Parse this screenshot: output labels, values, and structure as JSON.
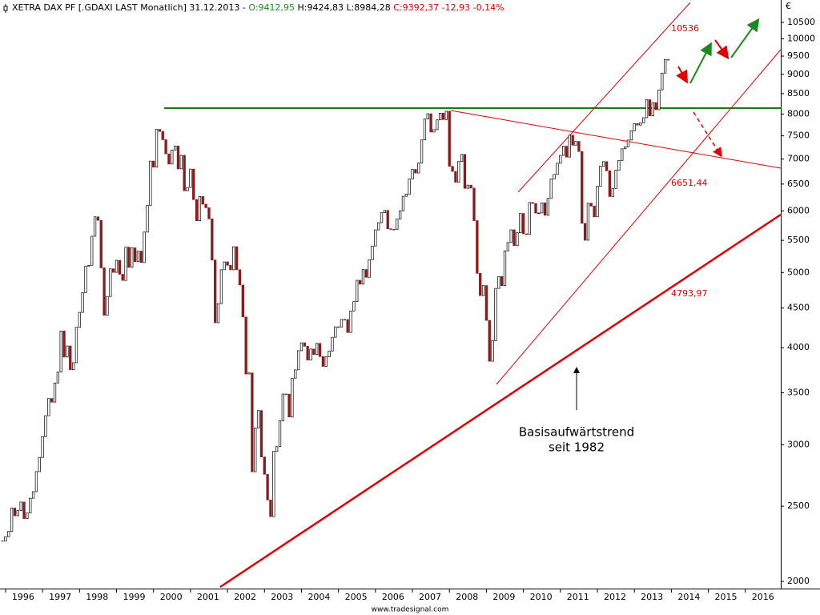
{
  "chart_data": {
    "type": "candlestick",
    "header": [
      "XETRA DAX PF [.GDAXI LAST Monatlich] 31.12.2013 -",
      "O:9412,95",
      "H:9424,83 L:8984,28",
      "C:9392,37 -12,93 -0,14%"
    ],
    "currency": "€",
    "log_scale": true,
    "color_up": "#ffffff",
    "color_down": "#8b1a1a",
    "values": [
      2254,
      2284,
      2320,
      2486,
      2430,
      2468,
      2531,
      2410,
      2450,
      2560,
      2610,
      2770,
      2889,
      3073,
      3270,
      3441,
      3404,
      3603,
      3722,
      4203,
      3891,
      4021,
      3748,
      3826,
      4250,
      4442,
      4710,
      5097,
      5108,
      5568,
      5898,
      5837,
      5070,
      4404,
      4657,
      5055,
      5002,
      5184,
      4974,
      4884,
      5390,
      5077,
      5379,
      5162,
      5326,
      5150,
      5637,
      6102,
      6958,
      6835,
      7644,
      7599,
      7414,
      7109,
      6898,
      7191,
      7277,
      6799,
      7078,
      6372,
      6434,
      6795,
      6208,
      5830,
      6265,
      6123,
      6058,
      5862,
      5188,
      4308,
      4559,
      5041,
      5160,
      5108,
      5040,
      5397,
      5041,
      4818,
      4382,
      3700,
      3712,
      2769,
      3153,
      3320,
      2893,
      2748,
      2547,
      2424,
      2942,
      2983,
      3221,
      3487,
      3485,
      3257,
      3655,
      3746,
      3965,
      4059,
      4018,
      3857,
      3985,
      3921,
      4052,
      3896,
      3785,
      3893,
      3960,
      4126,
      4256,
      4254,
      4350,
      4349,
      4185,
      4460,
      4586,
      4886,
      4830,
      5044,
      4929,
      5193,
      5408,
      5674,
      5796,
      5970,
      6010,
      5692,
      5683,
      5682,
      5859,
      6004,
      6268,
      6309,
      6597,
      6789,
      6716,
      6917,
      7409,
      7883,
      8007,
      7584,
      7638,
      7862,
      8020,
      7871,
      8067,
      6851,
      6748,
      6535,
      6949,
      7097,
      6418,
      6479,
      6422,
      5831,
      4988,
      4669,
      4810,
      4338,
      3843,
      4085,
      4770,
      4941,
      4809,
      5332,
      5465,
      5675,
      5415,
      5626,
      5957,
      5608,
      5598,
      6154,
      6136,
      5964,
      5966,
      6148,
      5925,
      6229,
      6601,
      6688,
      6914,
      7077,
      7272,
      7041,
      7514,
      7294,
      7376,
      7159,
      5785,
      5502,
      6141,
      6089,
      5898,
      6458,
      6856,
      6947,
      6761,
      6264,
      6416,
      6772,
      6971,
      7216,
      7260,
      7406,
      7612,
      7776,
      7742,
      7795,
      7914,
      8349,
      7959,
      8276,
      8103,
      8594,
      9033,
      9406,
      9392
    ],
    "xlim": [
      -0.8,
      252.5
    ],
    "xticks": [
      {
        "value": 1,
        "label": "1996"
      },
      {
        "value": 13,
        "label": "1997"
      },
      {
        "value": 25,
        "label": "1998"
      },
      {
        "value": 37,
        "label": "1999"
      },
      {
        "value": 49,
        "label": "2000"
      },
      {
        "value": 61,
        "label": "2001"
      },
      {
        "value": 73,
        "label": "2002"
      },
      {
        "value": 85,
        "label": "2003"
      },
      {
        "value": 97,
        "label": "2004"
      },
      {
        "value": 109,
        "label": "2005"
      },
      {
        "value": 121,
        "label": "2006"
      },
      {
        "value": 133,
        "label": "2007"
      },
      {
        "value": 145,
        "label": "2008"
      },
      {
        "value": 157,
        "label": "2009"
      },
      {
        "value": 169,
        "label": "2010"
      },
      {
        "value": 181,
        "label": "2011"
      },
      {
        "value": 193,
        "label": "2012"
      },
      {
        "value": 205,
        "label": "2013"
      },
      {
        "value": 217,
        "label": "2014"
      },
      {
        "value": 229,
        "label": "2015"
      },
      {
        "value": 241,
        "label": "2016"
      }
    ],
    "ylim": [
      1958,
      11220
    ],
    "yticks": [
      2000,
      2500,
      3000,
      3500,
      4000,
      4500,
      5000,
      5500,
      6000,
      6500,
      7000,
      7500,
      8000,
      8500,
      9000,
      9500,
      10000,
      10500
    ],
    "annotations": [
      "10536",
      "6651,44",
      "4793,97",
      "Basisaufwärtstrend",
      "seit 1982"
    ],
    "footer": "www.tradesignal.com"
  }
}
